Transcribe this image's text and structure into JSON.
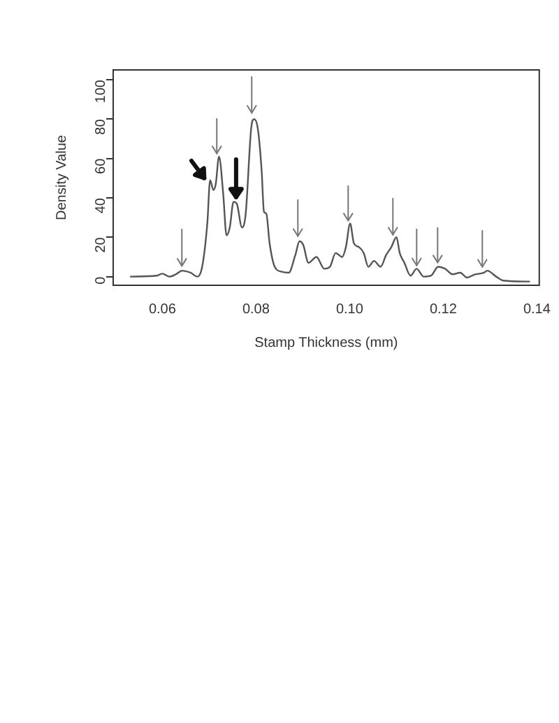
{
  "chart_data": {
    "type": "line",
    "xlabel": "Stamp Thickness (mm)",
    "ylabel": "Density Value",
    "xlim": [
      0.0495,
      0.1405
    ],
    "ylim": [
      -4.4,
      105
    ],
    "xticks": [
      0.06,
      0.08,
      {
        "value": 0.1,
        "label": "0.10"
      },
      0.12,
      0.14
    ],
    "yticks": [
      0,
      20,
      40,
      60,
      80,
      100
    ],
    "grid": false,
    "legend": false,
    "marker": "none",
    "line_style": "solid",
    "series": [
      {
        "color": "#555555",
        "x": [
          0.0531,
          0.0588,
          0.06,
          0.0615,
          0.0629,
          0.0642,
          0.066,
          0.0675,
          0.0685,
          0.0696,
          0.0702,
          0.0709,
          0.0714,
          0.0721,
          0.073,
          0.0737,
          0.0744,
          0.0752,
          0.0759,
          0.077,
          0.0778,
          0.079,
          0.0796,
          0.0804,
          0.0812,
          0.0817,
          0.0822,
          0.0829,
          0.084,
          0.0855,
          0.087,
          0.0884,
          0.0893,
          0.0901,
          0.0912,
          0.0929,
          0.0946,
          0.0958,
          0.097,
          0.0984,
          0.0992,
          0.1001,
          0.1009,
          0.102,
          0.103,
          0.104,
          0.1052,
          0.1066,
          0.1078,
          0.1089,
          0.11,
          0.1107,
          0.1117,
          0.113,
          0.1143,
          0.1158,
          0.1174,
          0.1189,
          0.1204,
          0.122,
          0.1236,
          0.1251,
          0.1266,
          0.1287,
          0.1294,
          0.1313,
          0.1328,
          0.1385
        ],
        "values": [
          0,
          0.5,
          1.5,
          0,
          1.2,
          3,
          2,
          0,
          5,
          27,
          49,
          44,
          47,
          61,
          42,
          21,
          25,
          38,
          37,
          25,
          32,
          76,
          80,
          75,
          54,
          33,
          32,
          17,
          5,
          2.5,
          2,
          11,
          18,
          16,
          7,
          10,
          4,
          5,
          12,
          10,
          15,
          27,
          17,
          15,
          12,
          5,
          8,
          5,
          11,
          15,
          20,
          12,
          7,
          0.5,
          4,
          0,
          0.5,
          5,
          4,
          1.2,
          2,
          -0.5,
          1,
          2,
          3,
          0,
          -2,
          -2.5
        ]
      }
    ]
  }
}
